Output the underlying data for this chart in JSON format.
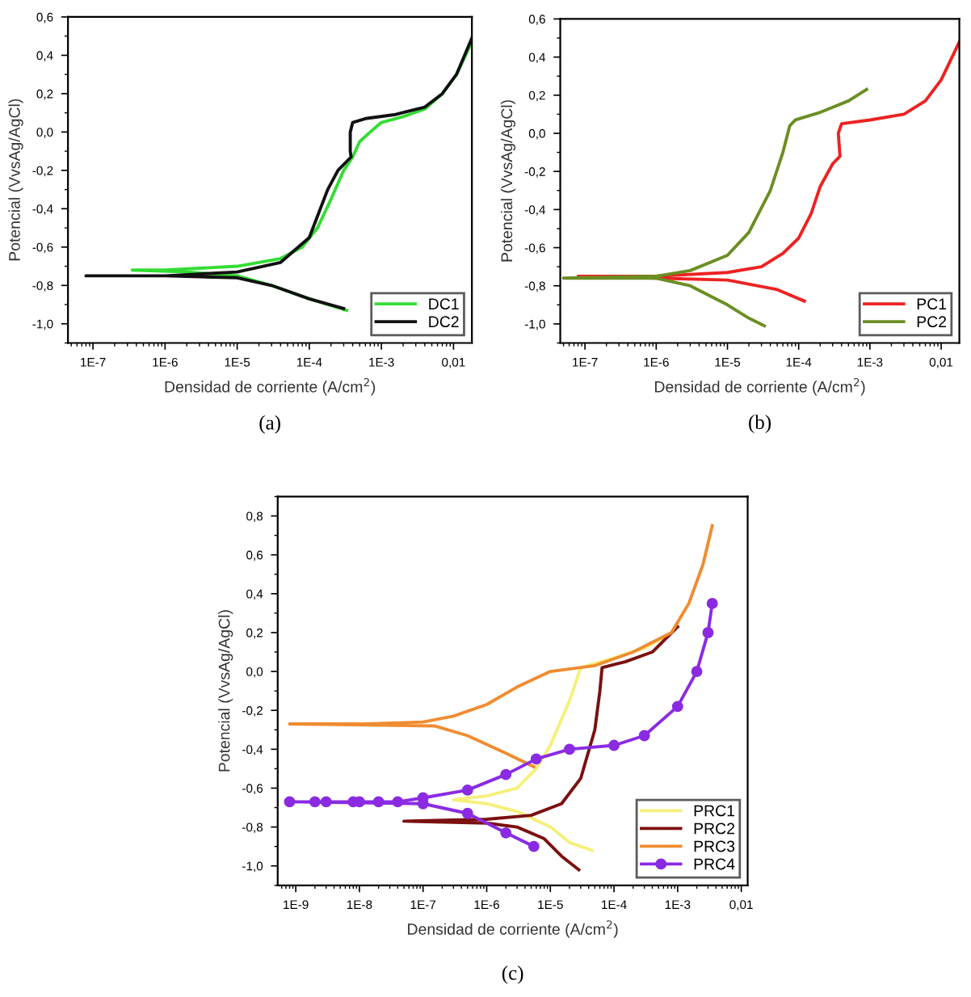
{
  "chart_data": [
    {
      "type": "line",
      "xlabel": "Densidad de corriente (A/cm$^{2}$)",
      "ylabel": "Potencial (VvsAg/AgCl)",
      "annotations": [
        "(a)"
      ],
      "log": "x",
      "grid": false,
      "legend": "bottom right",
      "marker": "none",
      "line_style": "solid",
      "xlim": [
        4.5e-08,
        0.018
      ],
      "ylim": [
        -1.1,
        0.6
      ],
      "xticks": [
        {
          "value": 1e-07,
          "label": "1E-7"
        },
        {
          "value": 1e-06,
          "label": "1E-6"
        },
        {
          "value": 1e-05,
          "label": "1E-5"
        },
        {
          "value": 0.0001,
          "label": "1E-4"
        },
        {
          "value": 0.001,
          "label": "1E-3"
        },
        {
          "value": 0.01,
          "label": "0,01"
        }
      ],
      "yticks": [
        {
          "value": -1.0,
          "label": "-1,0"
        },
        {
          "value": -0.8,
          "label": "-0,8"
        },
        {
          "value": -0.6,
          "label": "-0,6"
        },
        {
          "value": -0.4,
          "label": "-0,4"
        },
        {
          "value": -0.2,
          "label": "-0,2"
        },
        {
          "value": 0.0,
          "label": "0,0"
        },
        {
          "value": 0.2,
          "label": "0,2"
        },
        {
          "value": 0.4,
          "label": "0,4"
        },
        {
          "value": 0.6,
          "label": "0,6"
        }
      ],
      "series": [
        {
          "name": "DC1",
          "color": "#33dd33",
          "x": [
            0.00033,
            0.0001,
            3e-05,
            1e-05,
            2e-06,
            3.5e-07,
            1e-06,
            1e-05,
            4e-05,
            8e-05,
            0.00013,
            0.0002,
            0.0003,
            0.0004,
            0.0005,
            0.0007,
            0.001,
            0.002,
            0.004,
            0.007,
            0.011,
            0.017
          ],
          "values": [
            -0.93,
            -0.87,
            -0.8,
            -0.75,
            -0.73,
            -0.72,
            -0.72,
            -0.7,
            -0.66,
            -0.6,
            -0.5,
            -0.35,
            -0.2,
            -0.13,
            -0.05,
            0.0,
            0.05,
            0.08,
            0.12,
            0.2,
            0.3,
            0.45
          ]
        },
        {
          "name": "DC2",
          "color": "#111111",
          "x": [
            0.0003,
            0.0001,
            3e-05,
            1e-05,
            1e-06,
            8e-08,
            1e-06,
            1e-05,
            4e-05,
            0.0001,
            0.00018,
            0.00025,
            0.00038,
            0.00037,
            0.00037,
            0.0004,
            0.0006,
            0.0015,
            0.004,
            0.007,
            0.011,
            0.018
          ],
          "values": [
            -0.92,
            -0.87,
            -0.8,
            -0.76,
            -0.75,
            -0.75,
            -0.75,
            -0.73,
            -0.68,
            -0.55,
            -0.3,
            -0.2,
            -0.13,
            -0.1,
            0.0,
            0.05,
            0.07,
            0.09,
            0.13,
            0.2,
            0.3,
            0.49
          ]
        }
      ]
    },
    {
      "type": "line",
      "xlabel": "Densidad de corriente (A/cm$^{2}$)",
      "ylabel": "Potencial (VvsAg/AgCl)",
      "annotations": [
        "(b)"
      ],
      "log": "x",
      "grid": false,
      "legend": "bottom right",
      "marker": "none",
      "line_style": "solid",
      "xlim": [
        4.5e-08,
        0.018
      ],
      "ylim": [
        -1.1,
        0.6
      ],
      "xticks": [
        {
          "value": 1e-07,
          "label": "1E-7"
        },
        {
          "value": 1e-06,
          "label": "1E-6"
        },
        {
          "value": 1e-05,
          "label": "1E-5"
        },
        {
          "value": 0.0001,
          "label": "1E-4"
        },
        {
          "value": 0.001,
          "label": "1E-3"
        },
        {
          "value": 0.01,
          "label": "0,01"
        }
      ],
      "yticks": [
        {
          "value": -1.0,
          "label": "-1,0"
        },
        {
          "value": -0.8,
          "label": "-0,8"
        },
        {
          "value": -0.6,
          "label": "-0,6"
        },
        {
          "value": -0.4,
          "label": "-0,4"
        },
        {
          "value": -0.2,
          "label": "-0,2"
        },
        {
          "value": 0.0,
          "label": "0,0"
        },
        {
          "value": 0.2,
          "label": "0,2"
        },
        {
          "value": 0.4,
          "label": "0,4"
        },
        {
          "value": 0.6,
          "label": "0,6"
        }
      ],
      "series": [
        {
          "name": "PC1",
          "color": "#ee2222",
          "x": [
            0.00012,
            5e-05,
            1e-05,
            1e-06,
            8e-08,
            1e-06,
            1e-05,
            3e-05,
            6e-05,
            0.0001,
            0.00015,
            0.0002,
            0.0003,
            0.00038,
            0.00036,
            0.0004,
            0.001,
            0.003,
            0.006,
            0.01,
            0.018
          ],
          "values": [
            -0.88,
            -0.82,
            -0.77,
            -0.76,
            -0.75,
            -0.75,
            -0.73,
            -0.7,
            -0.63,
            -0.55,
            -0.42,
            -0.28,
            -0.16,
            -0.12,
            0.0,
            0.05,
            0.07,
            0.1,
            0.17,
            0.28,
            0.48
          ]
        },
        {
          "name": "PC2",
          "color": "#6b8e23",
          "x": [
            3.3e-05,
            2e-05,
            1e-05,
            3e-06,
            1e-06,
            5e-08,
            1e-06,
            3e-06,
            1e-05,
            2e-05,
            4e-05,
            6e-05,
            7.5e-05,
            9e-05,
            0.0002,
            0.0005,
            0.0009
          ],
          "values": [
            -1.01,
            -0.97,
            -0.9,
            -0.8,
            -0.76,
            -0.76,
            -0.75,
            -0.72,
            -0.64,
            -0.52,
            -0.3,
            -0.1,
            0.04,
            0.07,
            0.11,
            0.17,
            0.23
          ]
        }
      ]
    },
    {
      "type": "line",
      "xlabel": "Densidad de corriente (A/cm$^{2}$)",
      "ylabel": "Potencial (VvsAg/AgCl)",
      "annotations": [
        "(c)"
      ],
      "log": "x",
      "grid": false,
      "legend": "bottom right",
      "line_style": "solid",
      "xlim": [
        5.2e-10,
        0.0126
      ],
      "ylim": [
        -1.1,
        0.9
      ],
      "xticks": [
        {
          "value": 1e-09,
          "label": "1E-9"
        },
        {
          "value": 1e-08,
          "label": "1E-8"
        },
        {
          "value": 1e-07,
          "label": "1E-7"
        },
        {
          "value": 1e-06,
          "label": "1E-6"
        },
        {
          "value": 1e-05,
          "label": "1E-5"
        },
        {
          "value": 0.0001,
          "label": "1E-4"
        },
        {
          "value": 0.001,
          "label": "1E-3"
        },
        {
          "value": 0.01,
          "label": "0,01"
        }
      ],
      "yticks": [
        {
          "value": -1.0,
          "label": "-1,0"
        },
        {
          "value": -0.8,
          "label": "-0,8"
        },
        {
          "value": -0.6,
          "label": "-0,6"
        },
        {
          "value": -0.4,
          "label": "-0,4"
        },
        {
          "value": -0.2,
          "label": "-0,2"
        },
        {
          "value": 0.0,
          "label": "0,0"
        },
        {
          "value": 0.2,
          "label": "0,2"
        },
        {
          "value": 0.4,
          "label": "0,4"
        },
        {
          "value": 0.6,
          "label": "0,6"
        },
        {
          "value": 0.8,
          "label": "0,8"
        }
      ],
      "series": [
        {
          "name": "PRC1",
          "color": "#f5f07a",
          "marker": "none",
          "x": [
            4.5e-05,
            2e-05,
            1e-05,
            3e-06,
            1e-06,
            3e-07,
            1e-06,
            3e-06,
            6e-06,
            1e-05,
            2e-05,
            3e-05,
            0.0001,
            0.0003,
            0.0008,
            0.001
          ],
          "values": [
            -0.92,
            -0.88,
            -0.8,
            -0.72,
            -0.68,
            -0.66,
            -0.64,
            -0.6,
            -0.5,
            -0.38,
            -0.15,
            0.02,
            0.07,
            0.12,
            0.2,
            0.25
          ]
        },
        {
          "name": "PRC2",
          "color": "#7a1010",
          "marker": "none",
          "x": [
            2.8e-05,
            1.5e-05,
            8e-06,
            3e-06,
            1e-06,
            5e-08,
            1e-06,
            5e-06,
            1.5e-05,
            3e-05,
            5e-05,
            6e-05,
            6.5e-05,
            0.00015,
            0.0004,
            0.001
          ],
          "values": [
            -1.02,
            -0.95,
            -0.86,
            -0.8,
            -0.78,
            -0.77,
            -0.76,
            -0.74,
            -0.68,
            -0.55,
            -0.3,
            -0.1,
            0.02,
            0.05,
            0.1,
            0.23
          ]
        },
        {
          "name": "PRC3",
          "color": "#f08c30",
          "marker": "none",
          "x": [
            5.5e-06,
            2e-06,
            5e-07,
            1.5e-07,
            8e-10,
            1e-08,
            1e-07,
            3e-07,
            1e-06,
            3e-06,
            1e-05,
            5e-05,
            0.0002,
            0.0008,
            0.0015,
            0.0025,
            0.0035
          ],
          "values": [
            -0.49,
            -0.42,
            -0.33,
            -0.28,
            -0.27,
            -0.27,
            -0.26,
            -0.23,
            -0.17,
            -0.08,
            0.0,
            0.03,
            0.1,
            0.2,
            0.35,
            0.55,
            0.75
          ]
        },
        {
          "name": "PRC4",
          "color": "#8a2be2",
          "marker": "circle",
          "x": [
            5.5e-06,
            2e-06,
            5e-07,
            1e-07,
            8e-10,
            2e-09,
            3e-09,
            8e-09,
            1e-08,
            2e-08,
            4e-08,
            1e-07,
            5e-07,
            2e-06,
            6e-06,
            2e-05,
            0.0001,
            0.0003,
            0.001,
            0.002,
            0.003,
            0.0035
          ],
          "values": [
            -0.9,
            -0.83,
            -0.73,
            -0.68,
            -0.67,
            -0.67,
            -0.67,
            -0.67,
            -0.67,
            -0.67,
            -0.67,
            -0.65,
            -0.61,
            -0.53,
            -0.45,
            -0.4,
            -0.38,
            -0.33,
            -0.18,
            0.0,
            0.2,
            0.35
          ]
        }
      ]
    }
  ]
}
